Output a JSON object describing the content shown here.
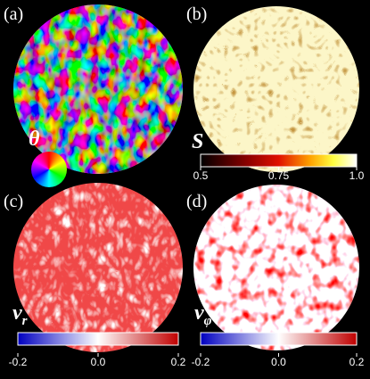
{
  "panels": [
    {
      "label": "(a)",
      "symbol": "θ"
    },
    {
      "label": "(b)",
      "symbol": "S",
      "colorbar": {
        "lim": [
          0.5,
          1
        ],
        "ticks": [
          0.5,
          0.75,
          {
            "value": 1,
            "label": "1.0"
          }
        ]
      }
    },
    {
      "label": "(c)",
      "symbol": "v",
      "subscript": "r",
      "colorbar": {
        "lim": [
          -0.2,
          0.2
        ],
        "ticks": [
          -0.2,
          {
            "value": 0,
            "label": "0.0"
          },
          0.2
        ]
      }
    },
    {
      "label": "(d)",
      "symbol": "v",
      "subscript": "φ",
      "colorbar": {
        "lim": [
          -0.2,
          0.2
        ],
        "ticks": [
          -0.2,
          {
            "value": 0,
            "label": "0.0"
          },
          0.2
        ]
      }
    }
  ]
}
